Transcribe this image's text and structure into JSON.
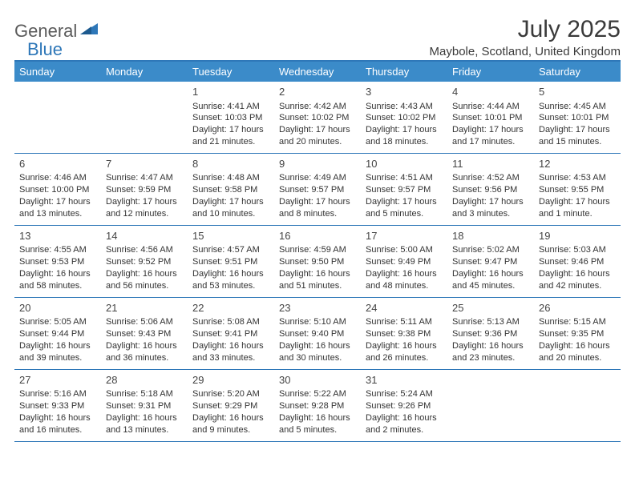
{
  "brand": {
    "part1": "General",
    "part2": "Blue"
  },
  "title": "July 2025",
  "location": "Maybole, Scotland, United Kingdom",
  "colors": {
    "header_bar": "#3b8bc9",
    "accent_line": "#2e77b8",
    "text": "#333333",
    "title_text": "#3a3a3a",
    "white": "#ffffff"
  },
  "day_names": [
    "Sunday",
    "Monday",
    "Tuesday",
    "Wednesday",
    "Thursday",
    "Friday",
    "Saturday"
  ],
  "weeks": [
    [
      null,
      null,
      {
        "d": "1",
        "sr": "Sunrise: 4:41 AM",
        "ss": "Sunset: 10:03 PM",
        "dl": "Daylight: 17 hours and 21 minutes."
      },
      {
        "d": "2",
        "sr": "Sunrise: 4:42 AM",
        "ss": "Sunset: 10:02 PM",
        "dl": "Daylight: 17 hours and 20 minutes."
      },
      {
        "d": "3",
        "sr": "Sunrise: 4:43 AM",
        "ss": "Sunset: 10:02 PM",
        "dl": "Daylight: 17 hours and 18 minutes."
      },
      {
        "d": "4",
        "sr": "Sunrise: 4:44 AM",
        "ss": "Sunset: 10:01 PM",
        "dl": "Daylight: 17 hours and 17 minutes."
      },
      {
        "d": "5",
        "sr": "Sunrise: 4:45 AM",
        "ss": "Sunset: 10:01 PM",
        "dl": "Daylight: 17 hours and 15 minutes."
      }
    ],
    [
      {
        "d": "6",
        "sr": "Sunrise: 4:46 AM",
        "ss": "Sunset: 10:00 PM",
        "dl": "Daylight: 17 hours and 13 minutes."
      },
      {
        "d": "7",
        "sr": "Sunrise: 4:47 AM",
        "ss": "Sunset: 9:59 PM",
        "dl": "Daylight: 17 hours and 12 minutes."
      },
      {
        "d": "8",
        "sr": "Sunrise: 4:48 AM",
        "ss": "Sunset: 9:58 PM",
        "dl": "Daylight: 17 hours and 10 minutes."
      },
      {
        "d": "9",
        "sr": "Sunrise: 4:49 AM",
        "ss": "Sunset: 9:57 PM",
        "dl": "Daylight: 17 hours and 8 minutes."
      },
      {
        "d": "10",
        "sr": "Sunrise: 4:51 AM",
        "ss": "Sunset: 9:57 PM",
        "dl": "Daylight: 17 hours and 5 minutes."
      },
      {
        "d": "11",
        "sr": "Sunrise: 4:52 AM",
        "ss": "Sunset: 9:56 PM",
        "dl": "Daylight: 17 hours and 3 minutes."
      },
      {
        "d": "12",
        "sr": "Sunrise: 4:53 AM",
        "ss": "Sunset: 9:55 PM",
        "dl": "Daylight: 17 hours and 1 minute."
      }
    ],
    [
      {
        "d": "13",
        "sr": "Sunrise: 4:55 AM",
        "ss": "Sunset: 9:53 PM",
        "dl": "Daylight: 16 hours and 58 minutes."
      },
      {
        "d": "14",
        "sr": "Sunrise: 4:56 AM",
        "ss": "Sunset: 9:52 PM",
        "dl": "Daylight: 16 hours and 56 minutes."
      },
      {
        "d": "15",
        "sr": "Sunrise: 4:57 AM",
        "ss": "Sunset: 9:51 PM",
        "dl": "Daylight: 16 hours and 53 minutes."
      },
      {
        "d": "16",
        "sr": "Sunrise: 4:59 AM",
        "ss": "Sunset: 9:50 PM",
        "dl": "Daylight: 16 hours and 51 minutes."
      },
      {
        "d": "17",
        "sr": "Sunrise: 5:00 AM",
        "ss": "Sunset: 9:49 PM",
        "dl": "Daylight: 16 hours and 48 minutes."
      },
      {
        "d": "18",
        "sr": "Sunrise: 5:02 AM",
        "ss": "Sunset: 9:47 PM",
        "dl": "Daylight: 16 hours and 45 minutes."
      },
      {
        "d": "19",
        "sr": "Sunrise: 5:03 AM",
        "ss": "Sunset: 9:46 PM",
        "dl": "Daylight: 16 hours and 42 minutes."
      }
    ],
    [
      {
        "d": "20",
        "sr": "Sunrise: 5:05 AM",
        "ss": "Sunset: 9:44 PM",
        "dl": "Daylight: 16 hours and 39 minutes."
      },
      {
        "d": "21",
        "sr": "Sunrise: 5:06 AM",
        "ss": "Sunset: 9:43 PM",
        "dl": "Daylight: 16 hours and 36 minutes."
      },
      {
        "d": "22",
        "sr": "Sunrise: 5:08 AM",
        "ss": "Sunset: 9:41 PM",
        "dl": "Daylight: 16 hours and 33 minutes."
      },
      {
        "d": "23",
        "sr": "Sunrise: 5:10 AM",
        "ss": "Sunset: 9:40 PM",
        "dl": "Daylight: 16 hours and 30 minutes."
      },
      {
        "d": "24",
        "sr": "Sunrise: 5:11 AM",
        "ss": "Sunset: 9:38 PM",
        "dl": "Daylight: 16 hours and 26 minutes."
      },
      {
        "d": "25",
        "sr": "Sunrise: 5:13 AM",
        "ss": "Sunset: 9:36 PM",
        "dl": "Daylight: 16 hours and 23 minutes."
      },
      {
        "d": "26",
        "sr": "Sunrise: 5:15 AM",
        "ss": "Sunset: 9:35 PM",
        "dl": "Daylight: 16 hours and 20 minutes."
      }
    ],
    [
      {
        "d": "27",
        "sr": "Sunrise: 5:16 AM",
        "ss": "Sunset: 9:33 PM",
        "dl": "Daylight: 16 hours and 16 minutes."
      },
      {
        "d": "28",
        "sr": "Sunrise: 5:18 AM",
        "ss": "Sunset: 9:31 PM",
        "dl": "Daylight: 16 hours and 13 minutes."
      },
      {
        "d": "29",
        "sr": "Sunrise: 5:20 AM",
        "ss": "Sunset: 9:29 PM",
        "dl": "Daylight: 16 hours and 9 minutes."
      },
      {
        "d": "30",
        "sr": "Sunrise: 5:22 AM",
        "ss": "Sunset: 9:28 PM",
        "dl": "Daylight: 16 hours and 5 minutes."
      },
      {
        "d": "31",
        "sr": "Sunrise: 5:24 AM",
        "ss": "Sunset: 9:26 PM",
        "dl": "Daylight: 16 hours and 2 minutes."
      },
      null,
      null
    ]
  ]
}
